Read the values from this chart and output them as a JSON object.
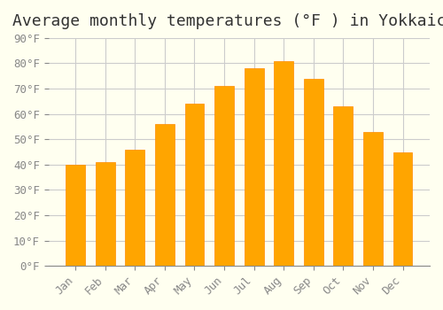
{
  "title": "Average monthly temperatures (°F ) in Yokkaichi",
  "months": [
    "Jan",
    "Feb",
    "Mar",
    "Apr",
    "May",
    "Jun",
    "Jul",
    "Aug",
    "Sep",
    "Oct",
    "Nov",
    "Dec"
  ],
  "values": [
    40,
    41,
    46,
    56,
    64,
    71,
    78,
    81,
    74,
    63,
    53,
    45
  ],
  "bar_color": "#FFA500",
  "bar_color_dark": "#FF8C00",
  "ylim": [
    0,
    90
  ],
  "yticks": [
    0,
    10,
    20,
    30,
    40,
    50,
    60,
    70,
    80,
    90
  ],
  "background_color": "#FFFFF0",
  "grid_color": "#CCCCCC",
  "title_fontsize": 13,
  "tick_fontsize": 9,
  "figsize": [
    5.0,
    3.5
  ],
  "dpi": 100
}
